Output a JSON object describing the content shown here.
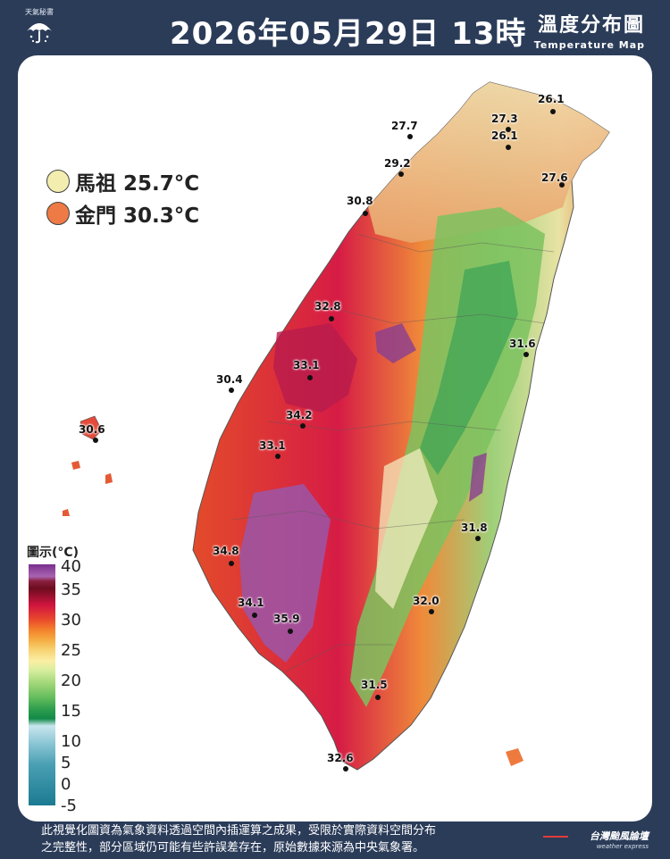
{
  "header": {
    "logo_text": "天氣秘書",
    "title": "2026年05月29日 13時",
    "map_title_zh": "溫度分布圖",
    "map_title_en": "Temperature Map"
  },
  "islands": [
    {
      "name": "馬祖 25.7°C",
      "color": "#f3eeb0"
    },
    {
      "name": "金門 30.3°C",
      "color": "#ee7a45"
    }
  ],
  "stations": [
    {
      "value": "26.1"
    },
    {
      "value": "27.3"
    },
    {
      "value": "27.7"
    },
    {
      "value": "26.1"
    },
    {
      "value": "29.2"
    },
    {
      "value": "27.6"
    },
    {
      "value": "30.8"
    },
    {
      "value": "32.8"
    },
    {
      "value": "33.1"
    },
    {
      "value": "31.6"
    },
    {
      "value": "30.4"
    },
    {
      "value": "34.2"
    },
    {
      "value": "30.6"
    },
    {
      "value": "33.1"
    },
    {
      "value": "31.8"
    },
    {
      "value": "34.8"
    },
    {
      "value": "32.0"
    },
    {
      "value": "34.1"
    },
    {
      "value": "35.9"
    },
    {
      "value": "31.5"
    },
    {
      "value": "32.6"
    }
  ],
  "legend": {
    "title": "圖示(°C)",
    "ticks": [
      "40",
      "35",
      "30",
      "25",
      "20",
      "15",
      "10",
      "5",
      "0",
      "-5"
    ]
  },
  "footer": {
    "line1": "此視覺化圖資為氣象資料透過空間內插運算之成果，受限於實際資料空間分布",
    "line2": "之完整性，部分區域仍可能有些許誤差存在，原始數據來源為中央氣象署。"
  },
  "brand": {
    "zh": "台灣颱風論壇",
    "en": "weather express"
  }
}
